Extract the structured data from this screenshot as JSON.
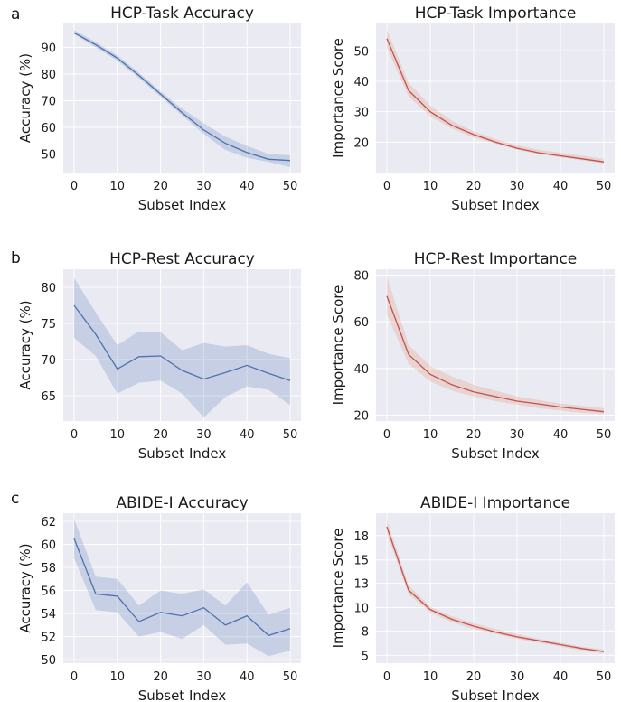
{
  "panel_letters": [
    "a",
    "b",
    "c"
  ],
  "chart_data": [
    {
      "type": "line",
      "title": "HCP-Task Accuracy",
      "xlabel": "Subset Index",
      "ylabel": "Accuracy (%)",
      "xlim": [
        -2.5,
        52.5
      ],
      "ylim": [
        43,
        99
      ],
      "xticks": [
        0,
        10,
        20,
        30,
        40,
        50
      ],
      "yticks": [
        50,
        60,
        70,
        80,
        90
      ],
      "grid": true,
      "color": "#4c72b0",
      "band_color": "#4c72b0",
      "x": [
        0,
        5,
        10,
        15,
        20,
        25,
        30,
        35,
        40,
        45,
        50
      ],
      "y": [
        95.5,
        91,
        86,
        79.5,
        72.5,
        65.5,
        59,
        54,
        50.5,
        48,
        47.5
      ],
      "lower": [
        95,
        90,
        85,
        78.5,
        71.5,
        64.5,
        57.5,
        51.5,
        48.5,
        47,
        45
      ],
      "upper": [
        96.5,
        92,
        87,
        80.5,
        73.5,
        67,
        61.5,
        56.5,
        53,
        50,
        49.5
      ]
    },
    {
      "type": "line",
      "title": "HCP-Task Importance",
      "xlabel": "Subset Index",
      "ylabel": "Importance Score",
      "xlim": [
        -2.5,
        52.5
      ],
      "ylim": [
        10,
        59
      ],
      "xticks": [
        0,
        10,
        20,
        30,
        40,
        50
      ],
      "yticks": [
        20,
        30,
        40,
        50
      ],
      "grid": true,
      "color": "#c44e52",
      "band_color": "#dd8452",
      "x": [
        0,
        5,
        10,
        15,
        20,
        25,
        30,
        35,
        40,
        45,
        50
      ],
      "y": [
        54,
        37,
        30,
        25.5,
        22.5,
        20,
        18,
        16.5,
        15.5,
        14.5,
        13.5
      ],
      "lower": [
        51,
        35,
        28.5,
        24.5,
        21.5,
        19.5,
        17.5,
        16,
        15,
        14,
        13
      ],
      "upper": [
        57,
        39.5,
        32,
        27,
        23.5,
        21,
        19,
        17.5,
        16.5,
        15.5,
        14.5
      ]
    },
    {
      "type": "line",
      "title": "HCP-Rest Accuracy",
      "xlabel": "Subset Index",
      "ylabel": "Accuracy (%)",
      "xlim": [
        -2.5,
        52.5
      ],
      "ylim": [
        61.5,
        82.5
      ],
      "xticks": [
        0,
        10,
        20,
        30,
        40,
        50
      ],
      "yticks": [
        65,
        70,
        75,
        80
      ],
      "grid": true,
      "color": "#4c72b0",
      "band_color": "#4c72b0",
      "x": [
        0,
        5,
        10,
        15,
        20,
        25,
        30,
        35,
        40,
        45,
        50
      ],
      "y": [
        77.5,
        73.5,
        68.7,
        70.4,
        70.5,
        68.5,
        67.3,
        68.2,
        69.2,
        68.1,
        67.1
      ],
      "lower": [
        73,
        70.5,
        65.3,
        66.8,
        67.1,
        65.3,
        62,
        64.8,
        66.3,
        65.8,
        63.7
      ],
      "upper": [
        81.3,
        76.5,
        72,
        73.9,
        73.8,
        71.3,
        72.3,
        71.8,
        72,
        70.8,
        70.2
      ]
    },
    {
      "type": "line",
      "title": "HCP-Rest Importance",
      "xlabel": "Subset Index",
      "ylabel": "Importance Score",
      "xlim": [
        -2.5,
        52.5
      ],
      "ylim": [
        17.5,
        82.5
      ],
      "xticks": [
        0,
        10,
        20,
        30,
        40,
        50
      ],
      "yticks": [
        20,
        40,
        60,
        80
      ],
      "grid": true,
      "color": "#c44e52",
      "band_color": "#dd8452",
      "x": [
        0,
        5,
        10,
        15,
        20,
        25,
        30,
        35,
        40,
        45,
        50
      ],
      "y": [
        71,
        46,
        37.5,
        33,
        30,
        28,
        26,
        24.8,
        23.5,
        22.5,
        21.5
      ],
      "lower": [
        63,
        42,
        34.5,
        30.5,
        28,
        26,
        24.5,
        23,
        22,
        21,
        20.5
      ],
      "upper": [
        79.5,
        50,
        41,
        36.5,
        33,
        30.5,
        28,
        26.5,
        25,
        24,
        23
      ]
    },
    {
      "type": "line",
      "title": "ABIDE-I Accuracy",
      "xlabel": "Subset Index",
      "ylabel": "Accuracy (%)",
      "xlim": [
        -2.5,
        52.5
      ],
      "ylim": [
        49.7,
        62.7
      ],
      "xticks": [
        0,
        10,
        20,
        30,
        40,
        50
      ],
      "yticks": [
        50,
        52,
        54,
        56,
        58,
        60,
        62
      ],
      "grid": true,
      "color": "#4c72b0",
      "band_color": "#4c72b0",
      "x": [
        0,
        5,
        10,
        15,
        20,
        25,
        30,
        35,
        40,
        45,
        50
      ],
      "y": [
        60.5,
        55.7,
        55.5,
        53.3,
        54.1,
        53.8,
        54.5,
        53,
        53.8,
        52.1,
        52.7
      ],
      "lower": [
        58.8,
        54.3,
        54.1,
        52,
        52.4,
        51.8,
        53,
        51.3,
        51.4,
        50.3,
        50.8
      ],
      "upper": [
        62.2,
        57.2,
        57,
        54.7,
        56,
        55.7,
        56.1,
        54.7,
        56.7,
        53.9,
        54.5
      ]
    },
    {
      "type": "line",
      "title": "ABIDE-I Importance",
      "xlabel": "Subset Index",
      "ylabel": "Importance Score",
      "xlim": [
        -2.5,
        52.5
      ],
      "ylim": [
        4.5,
        19.9
      ],
      "xticks": [
        0,
        10,
        20,
        30,
        40,
        50
      ],
      "yticks": [
        5,
        8,
        10,
        13,
        15,
        18
      ],
      "ytick_values": [
        5.3,
        7.8,
        10.2,
        12.7,
        15.1,
        17.6
      ],
      "grid": true,
      "color": "#c44e52",
      "band_color": "#dd8452",
      "x": [
        0,
        5,
        10,
        15,
        20,
        25,
        30,
        35,
        40,
        45,
        50
      ],
      "y": [
        18.5,
        12,
        10,
        9,
        8.3,
        7.7,
        7.2,
        6.8,
        6.4,
        6,
        5.7
      ],
      "lower": [
        17.8,
        11.6,
        9.7,
        8.7,
        8,
        7.5,
        7,
        6.6,
        6.2,
        5.8,
        5.5
      ],
      "upper": [
        19.2,
        12.5,
        10.3,
        9.3,
        8.6,
        8,
        7.5,
        7,
        6.6,
        6.2,
        5.9
      ]
    }
  ]
}
